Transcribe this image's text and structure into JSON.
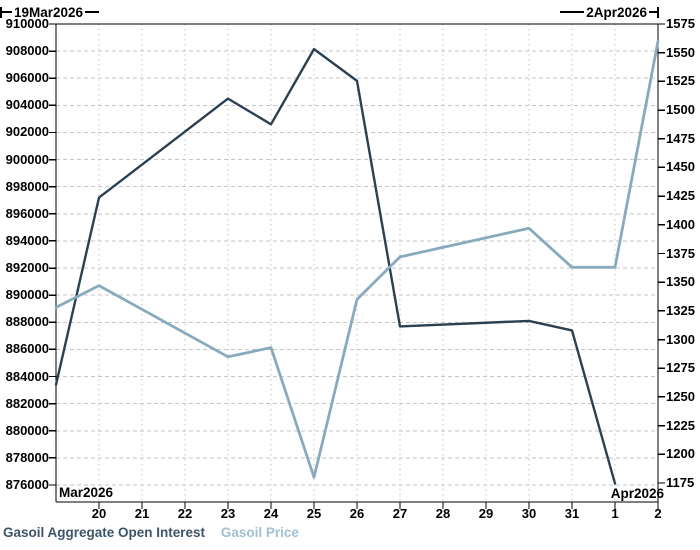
{
  "chart_data": {
    "type": "line",
    "title": "",
    "grid": true,
    "annotations": {
      "start_date": "19Mar2026",
      "end_date": "2Apr2026"
    },
    "x_axis": {
      "start_label": "Mar2026",
      "end_label": "Apr2026",
      "tick_labels": [
        "20",
        "21",
        "22",
        "23",
        "24",
        "25",
        "26",
        "27",
        "28",
        "29",
        "30",
        "31",
        "1",
        "2"
      ],
      "tick_indices": [
        1,
        2,
        3,
        4,
        5,
        6,
        7,
        8,
        9,
        10,
        11,
        12,
        13,
        14
      ],
      "index_max": 14
    },
    "left_axis": {
      "title": "Gasoil Aggregate Open Interest",
      "max": 910000,
      "min": 876000,
      "step": 2000,
      "ticks": [
        "910000",
        "908000",
        "906000",
        "904000",
        "902000",
        "900000",
        "898000",
        "896000",
        "894000",
        "892000",
        "890000",
        "888000",
        "886000",
        "884000",
        "882000",
        "880000",
        "878000",
        "876000"
      ]
    },
    "right_axis": {
      "title": "Gasoil Price",
      "max": 1575,
      "min": 1175,
      "step": 25,
      "ticks": [
        "1575",
        "1550",
        "1525",
        "1500",
        "1475",
        "1450",
        "1425",
        "1400",
        "1375",
        "1350",
        "1325",
        "1300",
        "1275",
        "1250",
        "1225",
        "1200",
        "1175"
      ]
    },
    "series": [
      {
        "name": "Gasoil Aggregate Open Interest",
        "axis": "left",
        "color": "#2d4052",
        "dates": [
          "19Mar2026",
          "20Mar2026",
          "23Mar2026",
          "24Mar2026",
          "25Mar2026",
          "26Mar2026",
          "27Mar2026",
          "30Mar2026",
          "31Mar2026",
          "1Apr2026"
        ],
        "x": [
          0,
          1,
          4,
          5,
          6,
          7,
          8,
          11,
          12,
          13
        ],
        "values": [
          883400,
          897200,
          904500,
          902600,
          908150,
          905800,
          887700,
          888100,
          887400,
          876100
        ]
      },
      {
        "name": "Gasoil Price",
        "axis": "right",
        "color": "#87abbc",
        "dates": [
          "19Mar2026",
          "20Mar2026",
          "23Mar2026",
          "24Mar2026",
          "25Mar2026",
          "26Mar2026",
          "27Mar2026",
          "30Mar2026",
          "31Mar2026",
          "1Apr2026",
          "2Apr2026"
        ],
        "x": [
          0,
          1,
          4,
          5,
          6,
          7,
          8,
          11,
          12,
          13,
          14
        ],
        "values": [
          1328,
          1347,
          1285,
          1293,
          1180,
          1335,
          1372,
          1397,
          1363,
          1363,
          1560
        ]
      }
    ],
    "legend": [
      {
        "label": "Gasoil Aggregate Open Interest",
        "color": "#3e5569"
      },
      {
        "label": "Gasoil Price",
        "color": "#a2c1d0"
      }
    ],
    "colors": {
      "grid": "#c6c6c6",
      "frame": "#000000",
      "text": "#000000"
    }
  }
}
